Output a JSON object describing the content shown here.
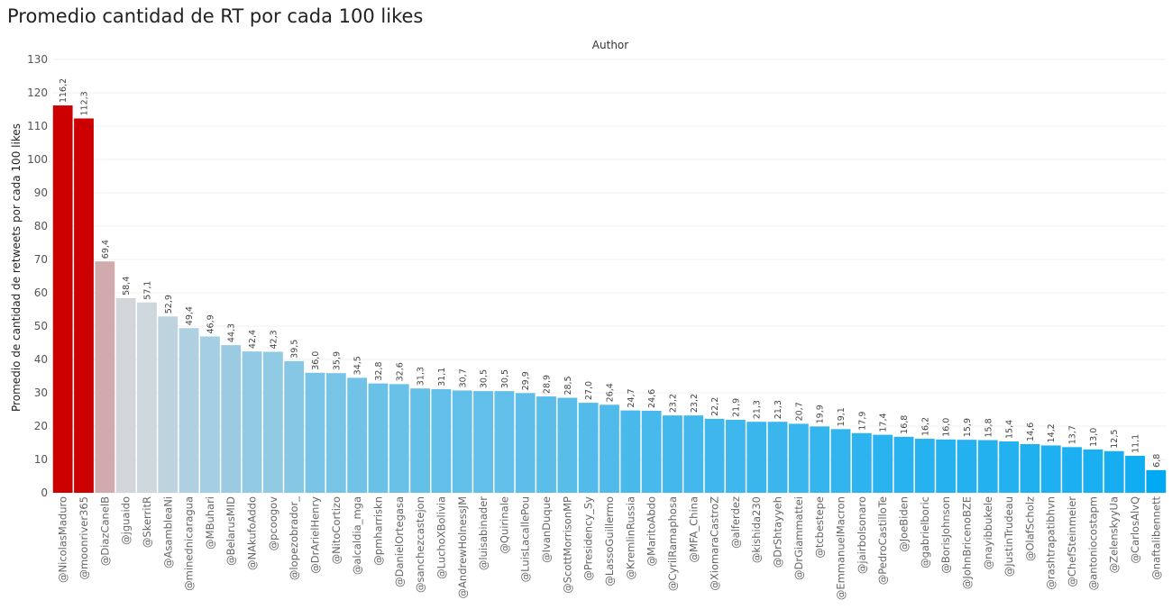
{
  "chart_data": {
    "type": "bar",
    "title": "Promedio cantidad de RT por cada 100 likes",
    "header": "Author",
    "xlabel": "",
    "ylabel": "Promedio de cantidad de retweets por cada 100 likes",
    "ylim": [
      0,
      130
    ],
    "yticks": [
      0,
      10,
      20,
      30,
      40,
      50,
      60,
      70,
      80,
      90,
      100,
      110,
      120,
      130
    ],
    "grid": true,
    "categories": [
      "@NicolasMaduro",
      "@moonriver365",
      "@DiazCanelB",
      "@jguaido",
      "@SkerritR",
      "@AsambleaNi",
      "@minednicaragua",
      "@MBuhari",
      "@BelarusMID",
      "@NAkufoAddo",
      "@pcoogov",
      "@lopezobrador_",
      "@DrArielHenry",
      "@NitoCortizo",
      "@alcaldia_mga",
      "@pmharriskn",
      "@DanielOrtegasa",
      "@sanchezcastejon",
      "@LuchoXBolivia",
      "@AndrewHolnessJM",
      "@luisabinader",
      "@Quirinale",
      "@LuisLacallePou",
      "@IvanDuque",
      "@ScottMorrisonMP",
      "@Presidency_Sy",
      "@LassoGuillermo",
      "@KremlinRussia",
      "@MaritoAbdo",
      "@CyrilRamaphosa",
      "@MFA_China",
      "@XiomaraCastroZ",
      "@alferdez",
      "@kishida230",
      "@DrShtayyeh",
      "@DrGiammattei",
      "@tcbestepe",
      "@EmmanuelMacron",
      "@jairbolsonaro",
      "@PedroCastilloTe",
      "@JoeBiden",
      "@gabrielboric",
      "@BorisJohnson",
      "@JohnBricenoBZE",
      "@nayibbukele",
      "@JustinTrudeau",
      "@OlafScholz",
      "@rashtrapatibhvn",
      "@ChefSteinmeier",
      "@antoniocostapm",
      "@ZelenskyyUa",
      "@CarlosAlvQ",
      "@naftalibennett"
    ],
    "values": [
      116.2,
      112.3,
      69.4,
      58.4,
      57.1,
      52.9,
      49.4,
      46.9,
      44.3,
      42.4,
      42.3,
      39.5,
      36.0,
      35.9,
      34.5,
      32.8,
      32.6,
      31.3,
      31.1,
      30.7,
      30.5,
      30.5,
      29.9,
      28.9,
      28.5,
      27.0,
      26.4,
      24.7,
      24.6,
      23.2,
      23.2,
      22.2,
      21.9,
      21.3,
      21.3,
      20.7,
      19.9,
      19.1,
      17.9,
      17.4,
      16.8,
      16.2,
      16.0,
      15.9,
      15.8,
      15.4,
      14.6,
      14.2,
      13.7,
      13.0,
      12.5,
      11.1,
      6.8
    ],
    "data_labels": [
      "116,2",
      "112,3",
      "69,4",
      "58,4",
      "57,1",
      "52,9",
      "49,4",
      "46,9",
      "44,3",
      "42,4",
      "42,3",
      "39,5",
      "36,0",
      "35,9",
      "34,5",
      "32,8",
      "32,6",
      "31,3",
      "31,1",
      "30,7",
      "30,5",
      "30,5",
      "29,9",
      "28,9",
      "28,5",
      "27,0",
      "26,4",
      "24,7",
      "24,6",
      "23,2",
      "23,2",
      "22,2",
      "21,9",
      "21,3",
      "21,3",
      "20,7",
      "19,9",
      "19,1",
      "17,9",
      "17,4",
      "16,8",
      "16,2",
      "16,0",
      "15,9",
      "15,8",
      "15,4",
      "14,6",
      "14,2",
      "13,7",
      "13,0",
      "12,5",
      "11,1",
      "6,8"
    ],
    "color_scale": {
      "high": "#cc0000",
      "mid": "#d2d8dc",
      "low": "#00a9f4",
      "mid_value": 58,
      "low_value": 7,
      "high_value": 112
    }
  }
}
